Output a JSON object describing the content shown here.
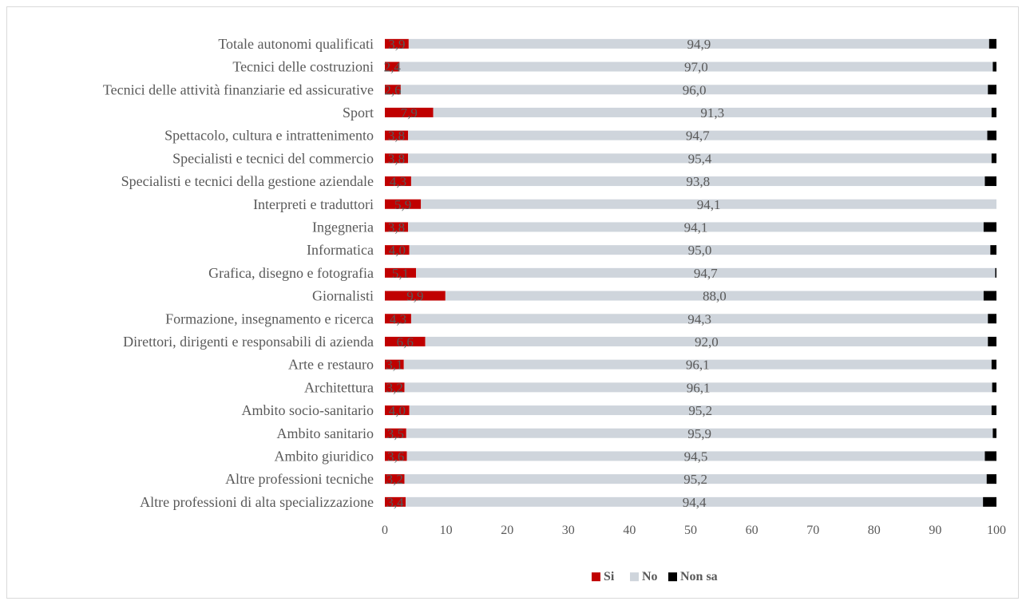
{
  "chart_data": {
    "type": "bar",
    "orientation": "horizontal",
    "stacked": "percent",
    "categories": [
      "Totale autonomi qualificati",
      "Tecnici delle costruzioni",
      "Tecnici delle attività finanziarie ed assicurative",
      "Sport",
      "Spettacolo, cultura e intrattenimento",
      "Specialisti e tecnici del commercio",
      "Specialisti e tecnici della gestione aziendale",
      "Interpreti e traduttori",
      "Ingegneria",
      "Informatica",
      "Grafica, disegno e fotografia",
      "Giornalisti",
      "Formazione, insegnamento e ricerca",
      "Direttori, dirigenti e responsabili di azienda",
      "Arte e restauro",
      "Architettura",
      "Ambito socio-sanitario",
      "Ambito sanitario",
      "Ambito giuridico",
      "Altre professioni tecniche",
      "Altre professioni di alta specializzazione"
    ],
    "series": [
      {
        "name": "Si",
        "color": "#c00000",
        "values": [
          3.9,
          2.4,
          2.6,
          7.9,
          3.8,
          3.8,
          4.3,
          5.9,
          3.8,
          4.0,
          5.1,
          9.9,
          4.3,
          6.6,
          3.1,
          3.2,
          4.0,
          3.5,
          3.6,
          3.2,
          3.4
        ],
        "labels": [
          "3,9",
          "2,4",
          "2,6",
          "7,9",
          "3,8",
          "3,8",
          "4,3",
          "5,9",
          "3,8",
          "4,0",
          "5,1",
          "9,9",
          "4,3",
          "6,6",
          "3,1",
          "3,2",
          "4,0",
          "3,5",
          "3,6",
          "3,2",
          "3,4"
        ]
      },
      {
        "name": "No",
        "color": "#cfd5dc",
        "values": [
          94.9,
          97.0,
          96.0,
          91.3,
          94.7,
          95.4,
          93.8,
          94.1,
          94.1,
          95.0,
          94.7,
          88.0,
          94.3,
          92.0,
          96.1,
          96.1,
          95.2,
          95.9,
          94.5,
          95.2,
          94.4
        ],
        "labels": [
          "94,9",
          "97,0",
          "96,0",
          "91,3",
          "94,7",
          "95,4",
          "93,8",
          "94,1",
          "94,1",
          "95,0",
          "94,7",
          "88,0",
          "94,3",
          "92,0",
          "96,1",
          "96,1",
          "95,2",
          "95,9",
          "94,5",
          "95,2",
          "94,4"
        ]
      },
      {
        "name": "Non sa",
        "color": "#000000",
        "values": [
          1.2,
          0.6,
          1.4,
          0.8,
          1.5,
          0.8,
          1.9,
          0.0,
          2.1,
          1.0,
          0.2,
          2.1,
          1.4,
          1.4,
          0.8,
          0.7,
          0.8,
          0.6,
          1.9,
          1.6,
          2.2
        ]
      }
    ],
    "xlim": [
      0,
      100
    ],
    "xticks": [
      0,
      10,
      20,
      30,
      40,
      50,
      60,
      70,
      80,
      90,
      100
    ],
    "grid": false,
    "legend_position": "bottom",
    "title": "",
    "xlabel": "",
    "ylabel": ""
  }
}
